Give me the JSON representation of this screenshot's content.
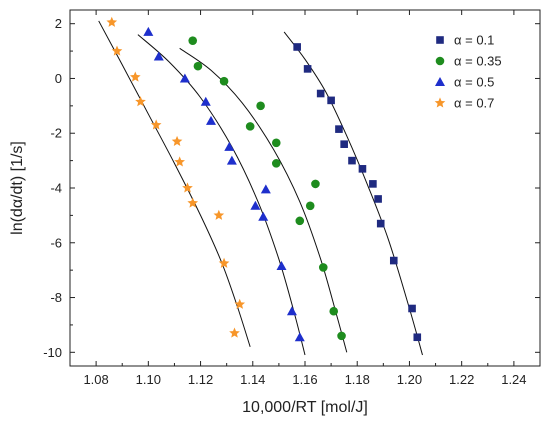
{
  "chart_data": {
    "type": "scatter",
    "xlabel": "10,000/RT [mol/J]",
    "ylabel": "ln(dα/dt)  [1/s]",
    "xlim": [
      1.07,
      1.25
    ],
    "ylim": [
      -10.5,
      2.5
    ],
    "x_ticks": [
      1.08,
      1.1,
      1.12,
      1.14,
      1.16,
      1.18,
      1.2,
      1.22,
      1.24
    ],
    "x_tick_labels": [
      "1.08",
      "1.10",
      "1.12",
      "1.14",
      "1.16",
      "1.18",
      "1.20",
      "1.22",
      "1.24"
    ],
    "y_ticks": [
      2,
      0,
      -2,
      -4,
      -6,
      -8,
      -10
    ],
    "y_tick_labels": [
      "2",
      "0",
      "-2",
      "-4",
      "-6",
      "-8",
      "-10"
    ],
    "grid": false,
    "legend_position": "top-right",
    "series": [
      {
        "name": "α = 0.1",
        "marker": "square",
        "color": "#1f2a80",
        "points": [
          [
            1.157,
            1.15
          ],
          [
            1.161,
            0.35
          ],
          [
            1.166,
            -0.55
          ],
          [
            1.17,
            -0.8
          ],
          [
            1.173,
            -1.85
          ],
          [
            1.175,
            -2.4
          ],
          [
            1.178,
            -3.0
          ],
          [
            1.182,
            -3.3
          ],
          [
            1.186,
            -3.85
          ],
          [
            1.188,
            -4.4
          ],
          [
            1.189,
            -5.3
          ],
          [
            1.194,
            -6.65
          ],
          [
            1.201,
            -8.4
          ],
          [
            1.203,
            -9.45
          ]
        ],
        "fit": [
          [
            1.152,
            1.7
          ],
          [
            1.16,
            0.7
          ],
          [
            1.168,
            -0.5
          ],
          [
            1.176,
            -2.1
          ],
          [
            1.184,
            -3.9
          ],
          [
            1.192,
            -5.9
          ],
          [
            1.2,
            -8.4
          ],
          [
            1.205,
            -10.1
          ]
        ]
      },
      {
        "name": "α = 0.35",
        "marker": "circle",
        "color": "#1e8c1e",
        "points": [
          [
            1.117,
            1.38
          ],
          [
            1.119,
            0.45
          ],
          [
            1.129,
            -0.1
          ],
          [
            1.139,
            -1.75
          ],
          [
            1.143,
            -1.0
          ],
          [
            1.149,
            -2.35
          ],
          [
            1.149,
            -3.1
          ],
          [
            1.158,
            -5.2
          ],
          [
            1.162,
            -4.65
          ],
          [
            1.164,
            -3.85
          ],
          [
            1.167,
            -6.9
          ],
          [
            1.171,
            -8.5
          ],
          [
            1.174,
            -9.4
          ]
        ],
        "fit": [
          [
            1.112,
            1.1
          ],
          [
            1.124,
            0.3
          ],
          [
            1.136,
            -0.9
          ],
          [
            1.148,
            -2.6
          ],
          [
            1.158,
            -4.5
          ],
          [
            1.166,
            -6.6
          ],
          [
            1.172,
            -8.6
          ],
          [
            1.176,
            -10.0
          ]
        ]
      },
      {
        "name": "α = 0.5",
        "marker": "triangle",
        "color": "#1e2fcc",
        "points": [
          [
            1.1,
            1.7
          ],
          [
            1.104,
            0.8
          ],
          [
            1.114,
            0.0
          ],
          [
            1.122,
            -0.85
          ],
          [
            1.124,
            -1.55
          ],
          [
            1.131,
            -2.5
          ],
          [
            1.132,
            -3.0
          ],
          [
            1.141,
            -4.65
          ],
          [
            1.144,
            -5.05
          ],
          [
            1.145,
            -4.05
          ],
          [
            1.151,
            -6.85
          ],
          [
            1.155,
            -8.5
          ],
          [
            1.158,
            -9.45
          ]
        ],
        "fit": [
          [
            1.096,
            1.6
          ],
          [
            1.108,
            0.6
          ],
          [
            1.12,
            -0.7
          ],
          [
            1.132,
            -2.5
          ],
          [
            1.142,
            -4.5
          ],
          [
            1.15,
            -6.6
          ],
          [
            1.156,
            -8.6
          ],
          [
            1.16,
            -10.1
          ]
        ]
      },
      {
        "name": "α = 0.7",
        "marker": "star",
        "color": "#f7962a",
        "points": [
          [
            1.086,
            2.05
          ],
          [
            1.088,
            1.0
          ],
          [
            1.095,
            0.05
          ],
          [
            1.097,
            -0.85
          ],
          [
            1.103,
            -1.7
          ],
          [
            1.111,
            -2.3
          ],
          [
            1.112,
            -3.05
          ],
          [
            1.115,
            -4.0
          ],
          [
            1.117,
            -4.55
          ],
          [
            1.127,
            -5.0
          ],
          [
            1.129,
            -6.75
          ],
          [
            1.135,
            -8.25
          ],
          [
            1.133,
            -9.3
          ]
        ],
        "fit": [
          [
            1.081,
            2.1
          ],
          [
            1.09,
            0.5
          ],
          [
            1.1,
            -1.3
          ],
          [
            1.11,
            -3.1
          ],
          [
            1.12,
            -5.0
          ],
          [
            1.128,
            -6.7
          ],
          [
            1.134,
            -8.3
          ],
          [
            1.139,
            -9.8
          ]
        ]
      }
    ]
  }
}
